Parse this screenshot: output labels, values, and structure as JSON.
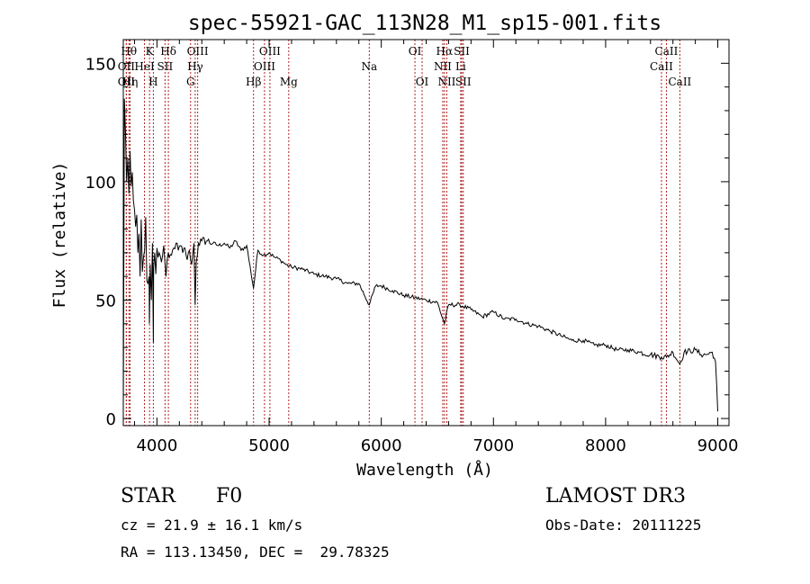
{
  "chart_data": {
    "type": "line",
    "title": "spec-55921-GAC_113N28_M1_sp15-001.fits",
    "xlabel": "Wavelength (Å)",
    "ylabel": "Flux (relative)",
    "xlim": [
      3700,
      9100
    ],
    "ylim": [
      -3,
      160
    ],
    "xticks": [
      4000,
      5000,
      6000,
      7000,
      8000,
      9000
    ],
    "yticks": [
      0,
      50,
      100,
      150
    ],
    "x_minor_step": 200,
    "y_minor_step": 10,
    "line_color": "#000000",
    "marker_color": "#b22222",
    "series": [
      {
        "name": "spectrum",
        "x": [
          3700,
          3710,
          3720,
          3730,
          3740,
          3750,
          3760,
          3770,
          3780,
          3790,
          3800,
          3810,
          3820,
          3830,
          3840,
          3850,
          3860,
          3870,
          3880,
          3890,
          3900,
          3910,
          3920,
          3930,
          3933,
          3940,
          3950,
          3960,
          3968,
          3970,
          3980,
          3990,
          4000,
          4010,
          4020,
          4040,
          4060,
          4080,
          4101,
          4110,
          4130,
          4150,
          4170,
          4190,
          4210,
          4230,
          4250,
          4270,
          4290,
          4310,
          4330,
          4340,
          4350,
          4370,
          4400,
          4450,
          4500,
          4550,
          4600,
          4650,
          4700,
          4750,
          4800,
          4861,
          4900,
          4950,
          5000,
          5050,
          5100,
          5150,
          5200,
          5300,
          5400,
          5500,
          5600,
          5700,
          5800,
          5893,
          5950,
          6000,
          6100,
          6200,
          6300,
          6400,
          6500,
          6563,
          6600,
          6700,
          6800,
          6900,
          7000,
          7100,
          7200,
          7300,
          7400,
          7500,
          7600,
          7700,
          7800,
          7900,
          8000,
          8100,
          8200,
          8300,
          8400,
          8498,
          8542,
          8600,
          8662,
          8700,
          8800,
          8850,
          8900,
          8950,
          8980,
          9000
        ],
        "y": [
          2,
          135,
          120,
          100,
          110,
          95,
          113,
          98,
          104,
          92,
          88,
          81,
          86,
          70,
          78,
          60,
          84,
          62,
          68,
          71,
          85,
          58,
          57,
          60,
          40,
          65,
          50,
          74,
          32,
          64,
          70,
          61,
          72,
          68,
          70,
          66,
          73,
          60,
          70,
          68,
          69,
          72,
          74,
          71,
          73,
          70,
          72,
          67,
          71,
          65,
          74,
          48,
          66,
          74,
          75,
          75,
          74,
          73,
          74,
          72,
          75,
          71,
          73,
          55,
          71,
          69,
          70,
          68,
          67,
          65,
          64,
          63,
          61,
          60,
          59,
          57,
          57,
          48,
          56,
          56,
          54,
          52,
          51,
          50,
          49,
          40,
          48,
          48,
          46,
          43,
          45,
          42,
          42,
          40,
          39,
          37,
          35,
          33,
          33,
          31,
          31,
          29,
          29,
          28,
          27,
          26,
          26,
          28,
          23,
          28,
          29,
          27,
          27,
          28,
          24,
          3
        ]
      }
    ],
    "lines": [
      {
        "wavelength": 3727,
        "label": "OII",
        "row": 1
      },
      {
        "wavelength": 3727,
        "label": "OII",
        "row": 2
      },
      {
        "wavelength": 3750,
        "label": "Hθ",
        "row": 0
      },
      {
        "wavelength": 3760,
        "label": "Hη",
        "row": 2
      },
      {
        "wavelength": 3889,
        "label": "HeI",
        "row": 1
      },
      {
        "wavelength": 3934,
        "label": "K",
        "row": 0
      },
      {
        "wavelength": 3968,
        "label": "H",
        "row": 2
      },
      {
        "wavelength": 4072,
        "label": "SII",
        "row": 1
      },
      {
        "wavelength": 4102,
        "label": "Hδ",
        "row": 0
      },
      {
        "wavelength": 4300,
        "label": "G",
        "row": 2
      },
      {
        "wavelength": 4341,
        "label": "Hγ",
        "row": 1
      },
      {
        "wavelength": 4363,
        "label": "OIII",
        "row": 0
      },
      {
        "wavelength": 4861,
        "label": "Hβ",
        "row": 2
      },
      {
        "wavelength": 4959,
        "label": "OIII",
        "row": 1
      },
      {
        "wavelength": 5007,
        "label": "OIII",
        "row": 0
      },
      {
        "wavelength": 5175,
        "label": "Mg",
        "row": 2
      },
      {
        "wavelength": 5893,
        "label": "Na",
        "row": 1
      },
      {
        "wavelength": 6300,
        "label": "OI",
        "row": 0
      },
      {
        "wavelength": 6364,
        "label": "OI",
        "row": 2
      },
      {
        "wavelength": 6548,
        "label": "NII",
        "row": 1
      },
      {
        "wavelength": 6563,
        "label": "Hα",
        "row": 0
      },
      {
        "wavelength": 6584,
        "label": "NII",
        "row": 2
      },
      {
        "wavelength": 6708,
        "label": "Li",
        "row": 1
      },
      {
        "wavelength": 6717,
        "label": "SII",
        "row": 0
      },
      {
        "wavelength": 6731,
        "label": "SII",
        "row": 2
      },
      {
        "wavelength": 8498,
        "label": "CaII",
        "row": 1
      },
      {
        "wavelength": 8542,
        "label": "CaII",
        "row": 0
      },
      {
        "wavelength": 8662,
        "label": "CaII",
        "row": 2
      }
    ]
  },
  "info": {
    "class": "STAR",
    "subclass": "F0",
    "cz": "cz = 21.9 ± 16.1 km/s",
    "coords": "RA = 113.13450, DEC =  29.78325",
    "survey": "LAMOST DR3",
    "obs_date": "Obs-Date: 20111225"
  }
}
